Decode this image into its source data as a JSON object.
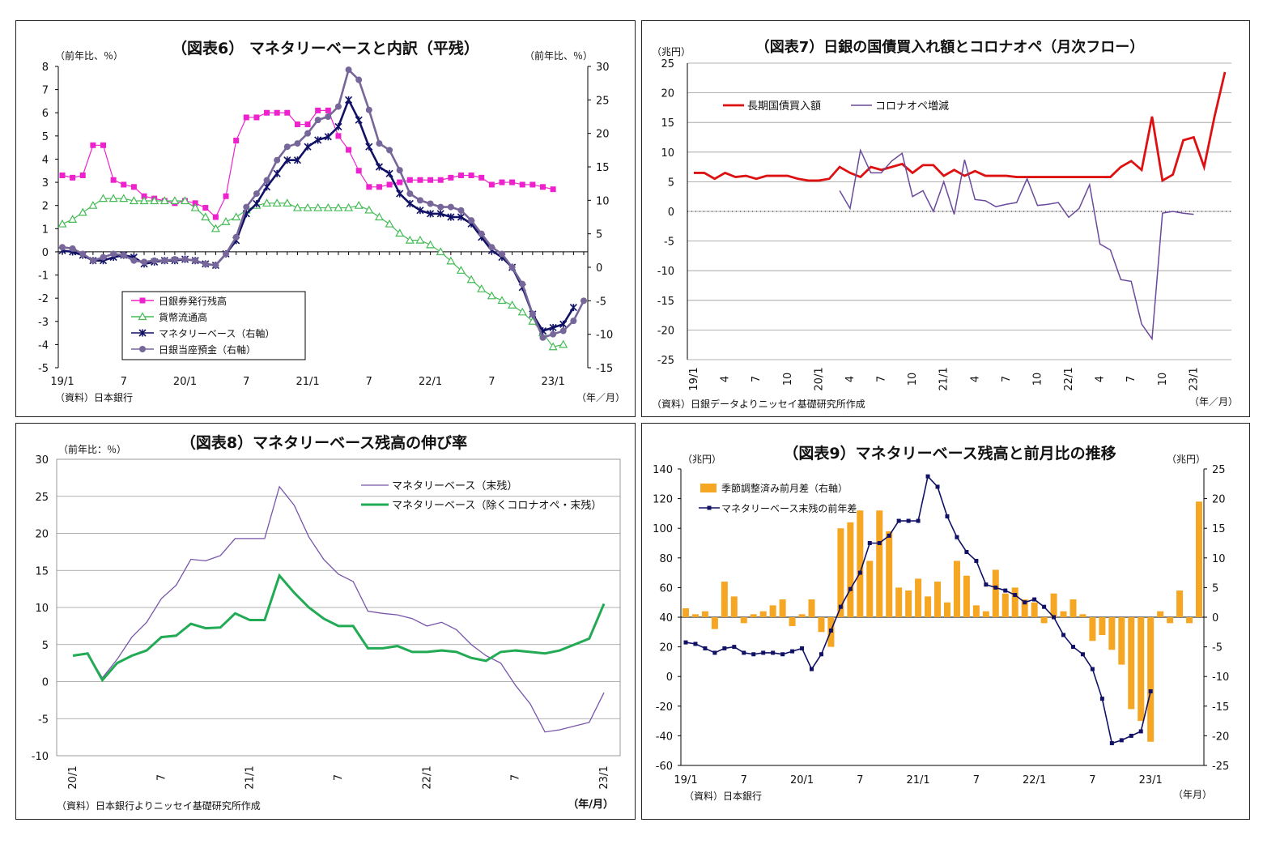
{
  "chart_data": [
    {
      "id": "fig6",
      "type": "line",
      "title": "（図表6） マネタリーベースと内訳（平残）",
      "ylabel_left": "（前年比、％）",
      "ylabel_right": "（前年比、％）",
      "ylim_left": [
        -5,
        8
      ],
      "ylim_right": [
        -15,
        30
      ],
      "yticks_left": [
        -5,
        -4,
        -3,
        -2,
        -1,
        0,
        1,
        2,
        3,
        4,
        5,
        6,
        7,
        8
      ],
      "yticks_right": [
        -15,
        -10,
        -5,
        0,
        5,
        10,
        15,
        20,
        25,
        30
      ],
      "xtick_labels": [
        "19/1",
        "7",
        "20/1",
        "7",
        "21/1",
        "7",
        "22/1",
        "7",
        "23/1"
      ],
      "xlabel": "（年／月）",
      "source": "（資料）日本銀行",
      "series": [
        {
          "name": "日銀券発行残高",
          "axis": "left",
          "color": "#ee22cc",
          "marker": "square",
          "values": [
            3.3,
            3.2,
            3.3,
            4.6,
            4.6,
            3.1,
            2.9,
            2.8,
            2.4,
            2.3,
            2.2,
            2.1,
            2.2,
            2.1,
            1.9,
            1.5,
            2.4,
            4.8,
            5.8,
            5.8,
            6.0,
            6.0,
            6.0,
            5.5,
            5.5,
            6.1,
            6.1,
            5.0,
            4.4,
            3.5,
            2.8,
            2.8,
            2.9,
            3.0,
            3.1,
            3.1,
            3.1,
            3.1,
            3.2,
            3.3,
            3.3,
            3.2,
            2.9,
            3.0,
            3.0,
            2.9,
            2.9,
            2.8,
            2.7
          ]
        },
        {
          "name": "貨幣流通高",
          "axis": "left",
          "color": "#44bb55",
          "marker": "triangle",
          "values": [
            1.2,
            1.4,
            1.7,
            2.0,
            2.3,
            2.3,
            2.3,
            2.2,
            2.2,
            2.2,
            2.2,
            2.2,
            2.2,
            1.9,
            1.5,
            1.0,
            1.3,
            1.5,
            1.8,
            2.0,
            2.1,
            2.1,
            2.1,
            1.9,
            1.9,
            1.9,
            1.9,
            1.9,
            1.9,
            2.0,
            1.8,
            1.5,
            1.2,
            0.8,
            0.5,
            0.5,
            0.3,
            0.0,
            -0.4,
            -0.8,
            -1.2,
            -1.6,
            -1.9,
            -2.1,
            -2.3,
            -2.6,
            -3.0,
            -3.5,
            -4.1,
            -4.0
          ]
        },
        {
          "name": "マネタリーベース（右軸）",
          "axis": "right",
          "color": "#111166",
          "marker": "asterisk",
          "values": [
            2.5,
            2.3,
            1.8,
            1.0,
            1.0,
            1.5,
            1.8,
            1.5,
            0.5,
            0.8,
            1.0,
            1.0,
            1.2,
            1.0,
            0.5,
            0.3,
            2.0,
            4.0,
            8.0,
            9.5,
            12.0,
            14.0,
            16.0,
            16.0,
            18.0,
            19.0,
            19.5,
            21.0,
            25.0,
            22.0,
            18.0,
            15.0,
            14.0,
            11.0,
            9.5,
            8.5,
            8.0,
            8.0,
            7.5,
            7.5,
            6.5,
            4.5,
            2.5,
            1.5,
            0.0,
            -3.0,
            -7.0,
            -9.5,
            -9.0,
            -8.5,
            -6.0
          ]
        },
        {
          "name": "日銀当座預金（右軸）",
          "axis": "right",
          "color": "#776699",
          "marker": "circle",
          "values": [
            3.0,
            2.8,
            2.0,
            1.0,
            1.5,
            2.0,
            1.8,
            1.0,
            0.8,
            1.0,
            1.0,
            1.2,
            1.2,
            1.0,
            0.5,
            0.3,
            2.0,
            4.5,
            9.0,
            11.0,
            13.0,
            16.0,
            18.0,
            18.5,
            20.0,
            22.0,
            22.5,
            24.0,
            29.5,
            28.0,
            23.5,
            18.5,
            17.5,
            14.5,
            11.0,
            10.0,
            9.5,
            9.0,
            9.0,
            8.5,
            7.0,
            5.0,
            3.0,
            2.0,
            0.0,
            -2.5,
            -7.0,
            -10.5,
            -10.0,
            -9.5,
            -8.0,
            -5.0
          ]
        }
      ]
    },
    {
      "id": "fig7",
      "type": "line",
      "title": "（図表7）日銀の国債買入れ額とコロナオペ（月次フロー）",
      "ylabel": "（兆円）",
      "ylim": [
        -25,
        25
      ],
      "yticks": [
        -25,
        -20,
        -15,
        -10,
        -5,
        0,
        5,
        10,
        15,
        20,
        25
      ],
      "xtick_labels": [
        "19/1",
        "4",
        "7",
        "10",
        "20/1",
        "4",
        "7",
        "10",
        "21/1",
        "4",
        "7",
        "10",
        "22/1",
        "4",
        "7",
        "10",
        "23/1"
      ],
      "xlabel": "（年／月）",
      "source": "（資料）日銀データよりニッセイ基礎研究所作成",
      "series": [
        {
          "name": "長期国債買入額",
          "color": "#dd1111",
          "offset": 0,
          "values": [
            6.5,
            6.5,
            5.5,
            6.5,
            5.8,
            6.0,
            5.5,
            6.0,
            6.0,
            6.0,
            5.5,
            5.2,
            5.2,
            5.5,
            7.5,
            6.5,
            5.8,
            7.5,
            7.0,
            7.5,
            8.0,
            6.5,
            7.8,
            7.8,
            6.0,
            7.0,
            6.0,
            6.8,
            6.0,
            6.0,
            6.0,
            5.8,
            5.8,
            5.8,
            5.8,
            5.8,
            5.8,
            5.8,
            5.8,
            5.8,
            5.8,
            7.5,
            8.5,
            7.0,
            16.0,
            5.2,
            6.2,
            12.0,
            12.5,
            7.5,
            16.0,
            23.5
          ]
        },
        {
          "name": "コロナオペ増減",
          "color": "#6a4a9a",
          "offset": 14,
          "values": [
            3.5,
            0.5,
            10.3,
            6.5,
            6.5,
            8.5,
            9.8,
            2.5,
            3.5,
            0.0,
            5.0,
            -0.5,
            8.7,
            2.0,
            1.8,
            0.8,
            1.2,
            1.5,
            5.5,
            1.0,
            1.2,
            1.5,
            -1.0,
            0.5,
            4.5,
            -5.5,
            -6.5,
            -11.5,
            -11.8,
            -19.0,
            -21.5,
            -0.3,
            0.0,
            -0.3,
            -0.5
          ]
        }
      ]
    },
    {
      "id": "fig8",
      "type": "line",
      "title": "（図表8）マネタリーベース残高の伸び率",
      "ylabel": "（前年比：％）",
      "ylim": [
        -10,
        30
      ],
      "yticks": [
        -10,
        -5,
        0,
        5,
        10,
        15,
        20,
        25,
        30
      ],
      "xtick_labels": [
        "20/1",
        "7",
        "21/1",
        "7",
        "22/1",
        "7",
        "23/1"
      ],
      "xlabel": "（年/月）",
      "source": "（資料）日本銀行よりニッセイ基礎研究所作成",
      "series": [
        {
          "name": "マネタリーベース（末残）",
          "color": "#7755aa",
          "values": [
            3.5,
            3.8,
            0.5,
            3.0,
            6.0,
            8.0,
            11.2,
            13.0,
            16.5,
            16.3,
            17.0,
            19.3,
            19.3,
            19.3,
            26.3,
            23.8,
            19.5,
            16.5,
            14.5,
            13.5,
            9.5,
            9.2,
            9.0,
            8.5,
            7.5,
            8.0,
            7.0,
            5.0,
            3.5,
            2.5,
            -0.5,
            -3.0,
            -6.8,
            -6.5,
            -6.0,
            -5.5,
            -1.5
          ]
        },
        {
          "name": "マネタリーベース（除くコロナオペ・末残）",
          "color": "#22aa55",
          "values": [
            3.5,
            3.8,
            0.2,
            2.5,
            3.5,
            4.2,
            6.0,
            6.2,
            7.8,
            7.2,
            7.3,
            9.2,
            8.3,
            8.3,
            14.3,
            12.0,
            10.0,
            8.5,
            7.5,
            7.5,
            4.5,
            4.5,
            4.8,
            4.0,
            4.0,
            4.2,
            4.0,
            3.2,
            2.8,
            4.0,
            4.2,
            4.0,
            3.8,
            4.2,
            5.0,
            5.8,
            10.5
          ]
        }
      ]
    },
    {
      "id": "fig9",
      "type": "bar",
      "title": "（図表9）マネタリーベース残高と前月比の推移",
      "ylabel_left": "（兆円）",
      "ylabel_right": "（兆円）",
      "ylim_left": [
        -60,
        140
      ],
      "ylim_right": [
        -25,
        25
      ],
      "yticks_left": [
        -60,
        -40,
        -20,
        0,
        20,
        40,
        60,
        80,
        100,
        120,
        140
      ],
      "yticks_right": [
        -25,
        -20,
        -15,
        -10,
        -5,
        0,
        5,
        10,
        15,
        20,
        25
      ],
      "xtick_labels": [
        "19/1",
        "7",
        "20/1",
        "7",
        "21/1",
        "7",
        "22/1",
        "7",
        "23/1"
      ],
      "xlabel": "（年月）",
      "source": "（資料）日本銀行",
      "series": [
        {
          "name": "季節調整済み前月差（右軸）",
          "axis": "right",
          "color": "#f5a623",
          "values": [
            1.5,
            0.5,
            1.0,
            -2.0,
            6.0,
            3.5,
            -1.0,
            0.5,
            1.0,
            2.0,
            3.0,
            -1.5,
            0.5,
            3.0,
            -2.5,
            -5.0,
            15.0,
            16.0,
            18.0,
            9.5,
            18.0,
            14.5,
            5.0,
            4.5,
            6.5,
            3.5,
            6.0,
            2.5,
            9.5,
            7.0,
            2.0,
            1.0,
            8.0,
            4.0,
            5.0,
            3.0,
            2.5,
            -1.0,
            4.0,
            1.0,
            3.0,
            0.5,
            -4.0,
            -3.0,
            -5.5,
            -8.0,
            -15.5,
            -17.5,
            -21.0,
            1.0,
            -1.0,
            4.5,
            -1.0,
            19.5
          ]
        },
        {
          "name": "マネタリーベース末残の前年差",
          "axis": "left",
          "color": "#111166",
          "values": [
            23,
            22,
            19,
            16,
            19,
            20,
            16,
            15,
            16,
            16,
            15,
            17,
            19,
            5,
            15,
            31,
            47,
            59,
            70,
            90,
            90,
            95,
            105,
            105,
            105,
            135,
            128,
            108,
            94,
            84,
            78,
            62,
            60,
            58,
            55,
            50,
            52,
            47,
            40,
            28,
            20,
            15,
            5,
            -15,
            -45,
            -43,
            -40,
            -37,
            -10
          ]
        }
      ]
    }
  ]
}
